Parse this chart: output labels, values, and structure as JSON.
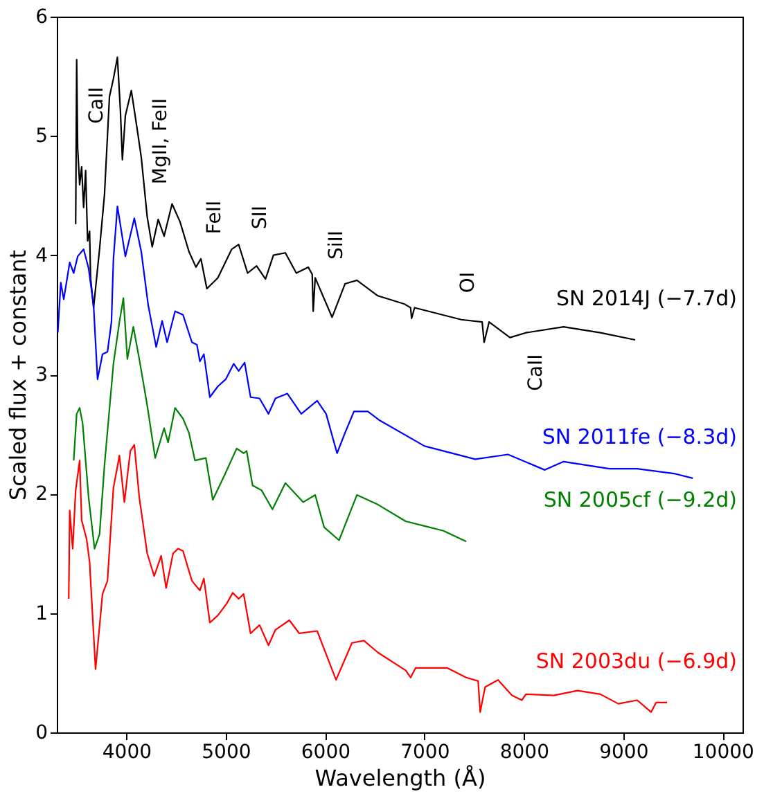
{
  "chart_data": {
    "type": "line",
    "xlabel": "Wavelength (Å)",
    "ylabel": "Scaled flux + constant",
    "xlim": [
      3300,
      10200
    ],
    "xticks": [
      4000,
      5000,
      6000,
      7000,
      8000,
      9000,
      10000
    ],
    "ylim": [
      0,
      6
    ],
    "yticks": [
      0,
      1,
      2,
      3,
      4,
      5,
      6
    ],
    "grid": false,
    "series": [
      {
        "name": "SN 2014J (−7.7d)",
        "color": "#000000",
        "x": [
          3490,
          3500,
          3510,
          3530,
          3550,
          3570,
          3590,
          3610,
          3630,
          3640,
          3670,
          3690,
          3730,
          3780,
          3830,
          3870,
          3910,
          3940,
          3960,
          3990,
          4050,
          4110,
          4150,
          4210,
          4260,
          4320,
          4380,
          4460,
          4540,
          4630,
          4700,
          4750,
          4810,
          4920,
          5060,
          5130,
          5220,
          5310,
          5400,
          5480,
          5600,
          5710,
          5830,
          5870,
          5880,
          5900,
          6070,
          6200,
          6320,
          6530,
          6800,
          6860,
          6870,
          6900,
          7370,
          7580,
          7600,
          7650,
          7860,
          8020,
          8400,
          8770,
          9120
        ],
        "values": [
          4.26,
          5.64,
          4.9,
          4.59,
          4.74,
          4.4,
          4.71,
          4.12,
          4.2,
          3.81,
          3.56,
          3.72,
          4.05,
          4.51,
          5.33,
          5.48,
          5.66,
          5.21,
          4.8,
          5.17,
          5.38,
          5.05,
          4.82,
          4.32,
          4.07,
          4.3,
          4.16,
          4.43,
          4.28,
          4.03,
          3.9,
          3.97,
          3.72,
          3.81,
          4.05,
          4.09,
          3.85,
          3.91,
          3.8,
          4.0,
          4.02,
          3.85,
          3.9,
          3.84,
          3.53,
          3.81,
          3.48,
          3.76,
          3.79,
          3.66,
          3.59,
          3.56,
          3.47,
          3.56,
          3.46,
          3.44,
          3.27,
          3.44,
          3.31,
          3.35,
          3.4,
          3.35,
          3.29
        ]
      },
      {
        "name": "SN 2011fe (−8.3d)",
        "color": "#0000ff",
        "x": [
          3310,
          3340,
          3370,
          3430,
          3470,
          3510,
          3570,
          3620,
          3670,
          3710,
          3760,
          3810,
          3850,
          3870,
          3910,
          3990,
          4080,
          4150,
          4220,
          4300,
          4360,
          4410,
          4490,
          4570,
          4660,
          4710,
          4740,
          4780,
          4840,
          4920,
          5000,
          5080,
          5130,
          5190,
          5250,
          5340,
          5430,
          5500,
          5620,
          5760,
          5920,
          6010,
          6120,
          6200,
          6290,
          6430,
          6540,
          7000,
          7510,
          7840,
          8210,
          8400,
          8860,
          9140,
          9510,
          9700
        ],
        "values": [
          3.35,
          3.77,
          3.63,
          3.94,
          3.85,
          3.99,
          4.05,
          3.89,
          3.58,
          2.96,
          3.17,
          3.19,
          3.44,
          3.97,
          4.41,
          3.99,
          4.31,
          4.03,
          3.58,
          3.23,
          3.45,
          3.27,
          3.53,
          3.5,
          3.27,
          3.25,
          3.11,
          3.17,
          2.81,
          2.9,
          2.96,
          3.09,
          3.03,
          3.1,
          2.81,
          2.8,
          2.67,
          2.8,
          2.84,
          2.67,
          2.78,
          2.67,
          2.34,
          2.51,
          2.69,
          2.69,
          2.62,
          2.4,
          2.29,
          2.33,
          2.2,
          2.27,
          2.21,
          2.21,
          2.17,
          2.13
        ]
      },
      {
        "name": "SN 2005cf (−9.2d)",
        "color": "#008000",
        "x": [
          3470,
          3500,
          3530,
          3560,
          3620,
          3680,
          3730,
          3780,
          3870,
          3930,
          3970,
          4010,
          4070,
          4130,
          4210,
          4290,
          4380,
          4420,
          4490,
          4570,
          4630,
          4690,
          4800,
          4870,
          4990,
          5110,
          5180,
          5210,
          5270,
          5360,
          5470,
          5600,
          5780,
          5900,
          5990,
          6140,
          6320,
          6530,
          6810,
          7000,
          7190,
          7420
        ],
        "values": [
          2.28,
          2.67,
          2.72,
          2.59,
          1.97,
          1.54,
          1.66,
          2.24,
          3.09,
          3.44,
          3.64,
          3.13,
          3.4,
          3.13,
          2.74,
          2.3,
          2.55,
          2.43,
          2.72,
          2.63,
          2.51,
          2.28,
          2.3,
          1.95,
          2.16,
          2.38,
          2.34,
          2.36,
          2.07,
          2.03,
          1.87,
          2.09,
          1.93,
          1.99,
          1.72,
          1.61,
          1.99,
          1.91,
          1.77,
          1.73,
          1.69,
          1.6
        ]
      },
      {
        "name": "SN 2003du (−6.9d)",
        "color": "#ff0000",
        "x": [
          3420,
          3430,
          3460,
          3490,
          3530,
          3550,
          3600,
          3630,
          3690,
          3760,
          3810,
          3870,
          3930,
          3980,
          4040,
          4080,
          4130,
          4210,
          4280,
          4350,
          4400,
          4470,
          4520,
          4570,
          4660,
          4740,
          4780,
          4840,
          4920,
          5010,
          5070,
          5130,
          5180,
          5250,
          5340,
          5430,
          5500,
          5640,
          5740,
          5920,
          6110,
          6270,
          6390,
          6530,
          6810,
          6860,
          6910,
          7230,
          7420,
          7540,
          7560,
          7610,
          7740,
          7880,
          7980,
          8020,
          8300,
          8540,
          8770,
          8950,
          9140,
          9280,
          9330,
          9440
        ],
        "values": [
          1.12,
          1.86,
          1.54,
          2.03,
          2.28,
          1.78,
          1.62,
          1.43,
          0.53,
          1.16,
          1.27,
          2.05,
          2.32,
          1.93,
          2.36,
          2.41,
          1.97,
          1.5,
          1.31,
          1.48,
          1.21,
          1.5,
          1.54,
          1.52,
          1.27,
          1.19,
          1.29,
          0.92,
          0.98,
          1.08,
          1.17,
          1.12,
          1.16,
          0.83,
          0.9,
          0.73,
          0.86,
          0.94,
          0.83,
          0.85,
          0.44,
          0.75,
          0.77,
          0.67,
          0.52,
          0.46,
          0.54,
          0.54,
          0.46,
          0.43,
          0.17,
          0.38,
          0.44,
          0.31,
          0.27,
          0.32,
          0.31,
          0.35,
          0.32,
          0.24,
          0.27,
          0.17,
          0.25,
          0.25
        ]
      }
    ],
    "annotations": [
      "CaII",
      "MgII, FeII",
      "FeII",
      "SII",
      "SiII",
      "OI",
      "CaII"
    ]
  }
}
